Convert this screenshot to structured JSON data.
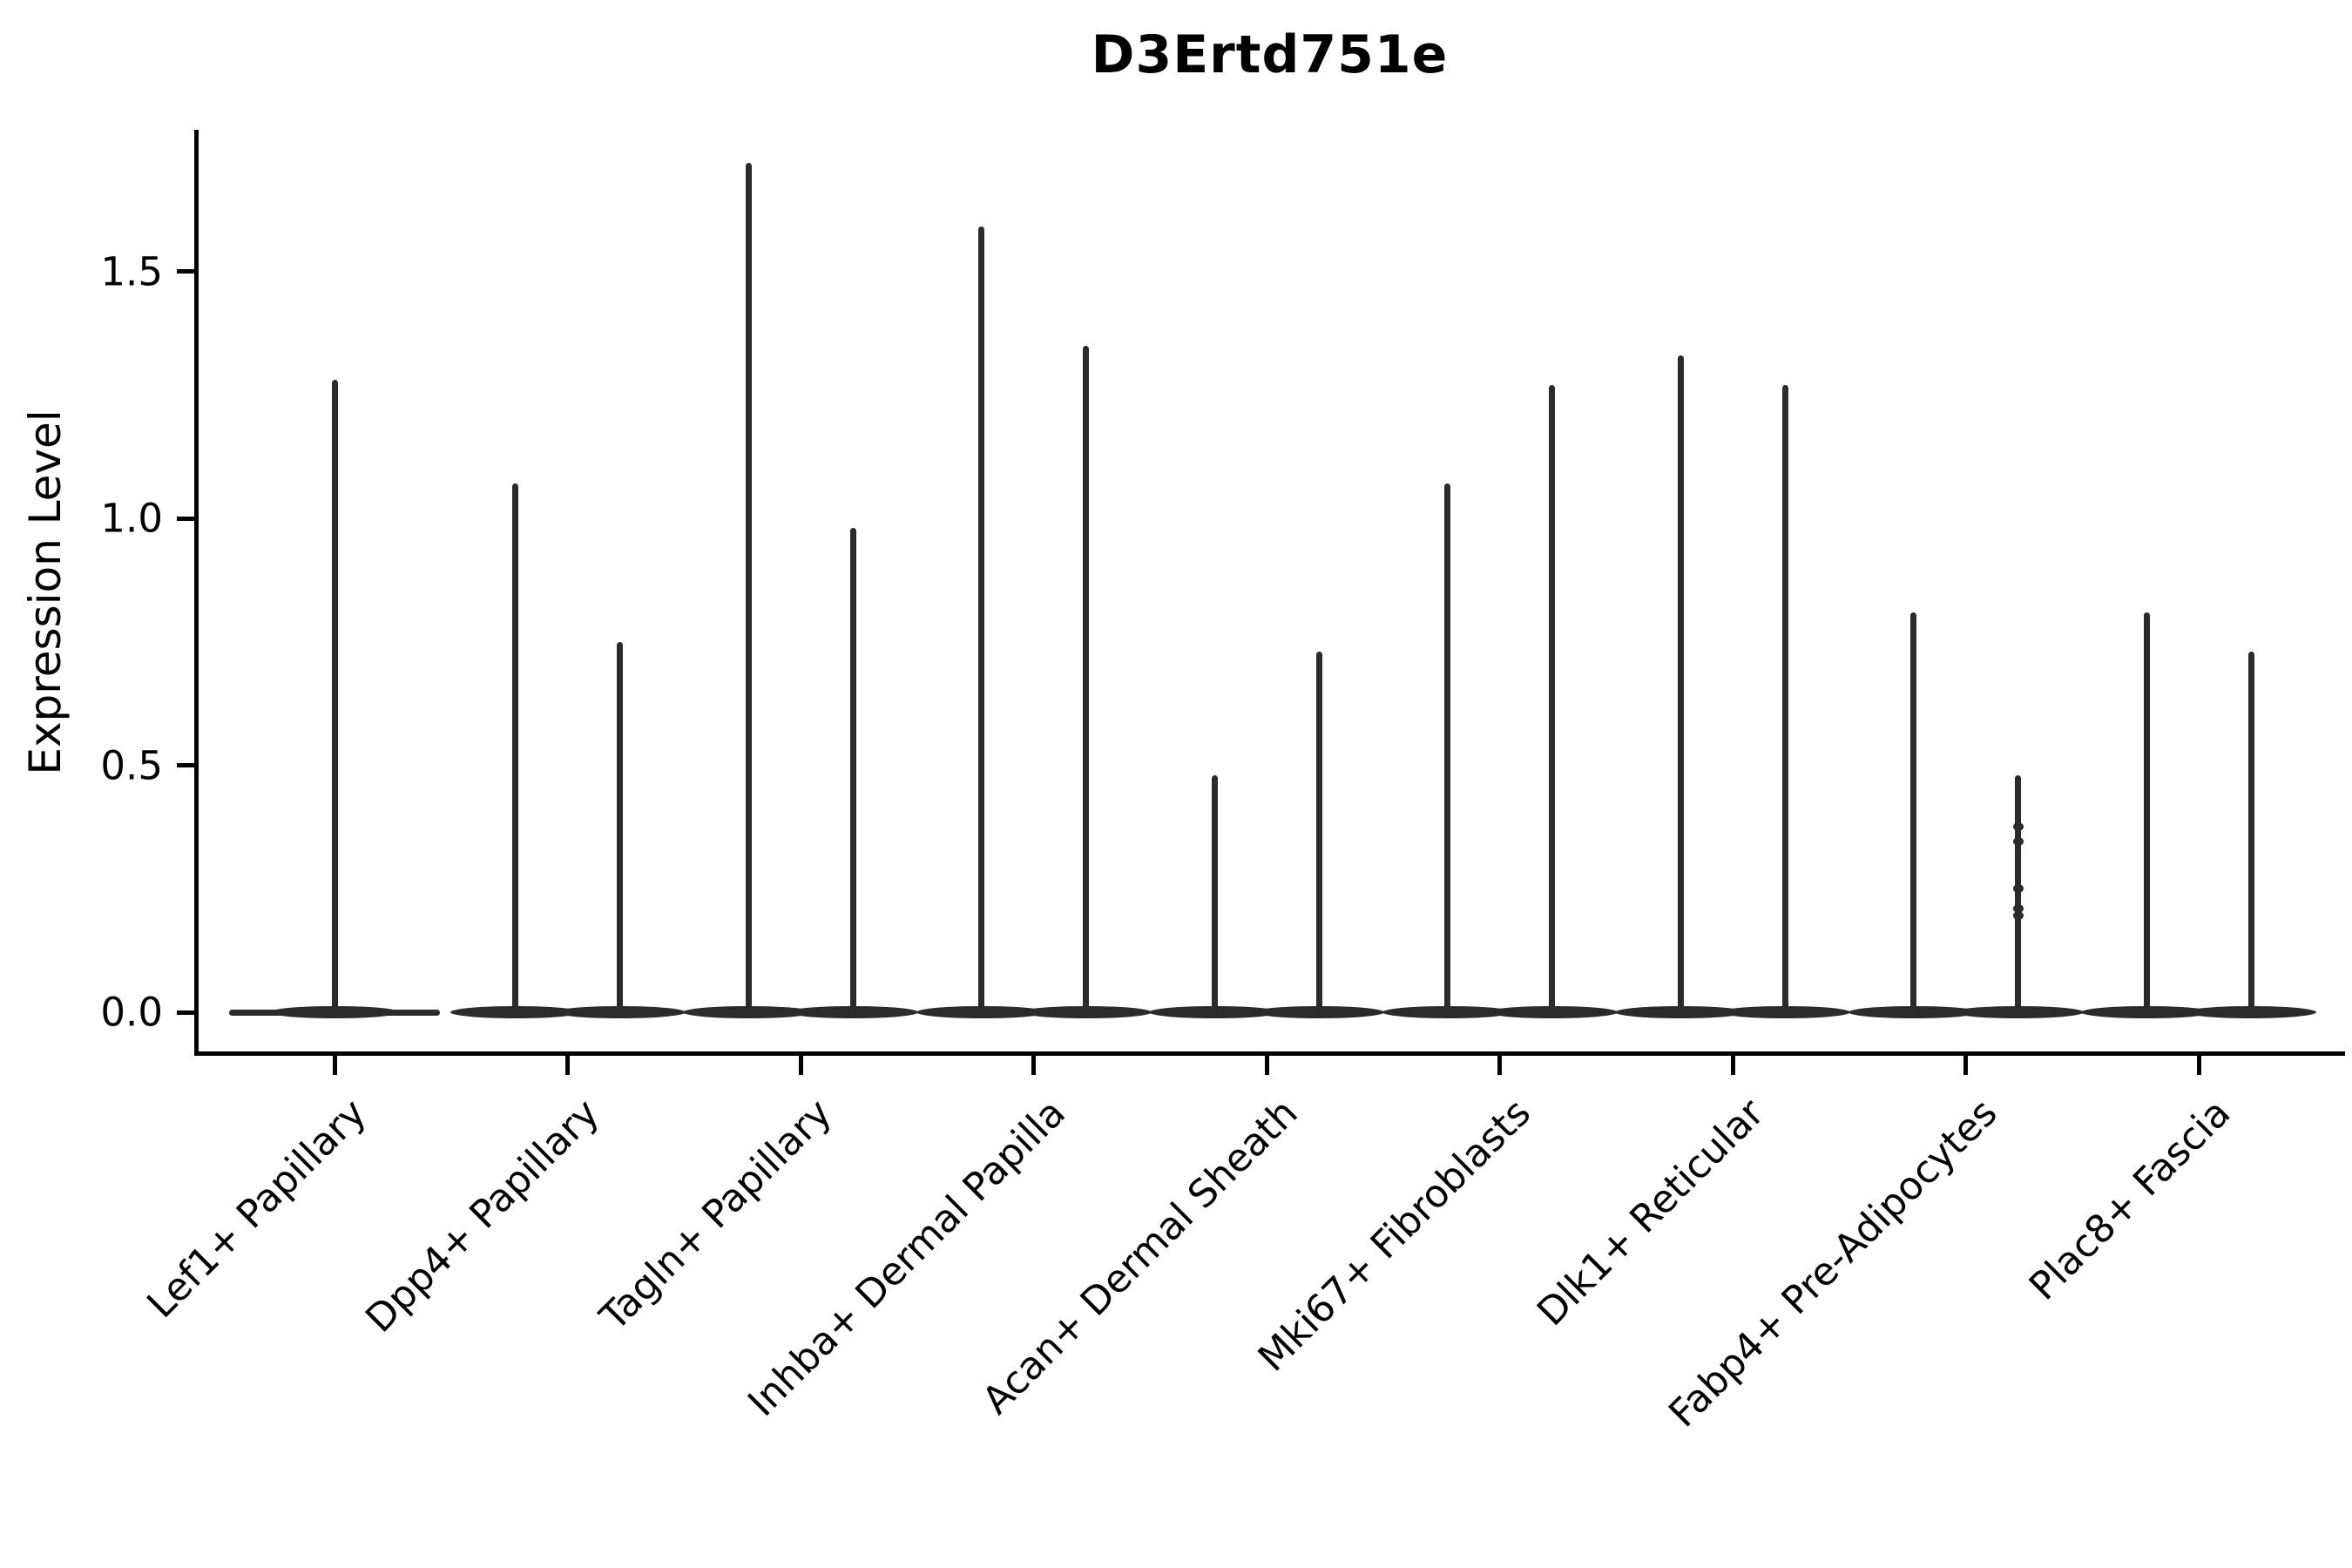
{
  "title": "D3Ertd751e",
  "y_axis": {
    "label": "Expression Level",
    "tick_labels": [
      "0.0",
      "0.5",
      "1.0",
      "1.5"
    ],
    "tick_values": [
      0.0,
      0.5,
      1.0,
      1.5
    ]
  },
  "chart_data": {
    "type": "violin",
    "title": "D3Ertd751e",
    "xlabel": "",
    "ylabel": "Expression Level",
    "ylim": [
      -0.09,
      1.79
    ],
    "grid": false,
    "legend": "none",
    "baseline_value": 0.0,
    "description": "Thin spike-like violins sitting on wide flat bases at expression 0; one violin for the first category, two violins per category for the rest",
    "categories": [
      "Lef1+ Papillary",
      "Dpp4+ Papillary",
      "Tagln+ Papillary",
      "Inhba+ Dermal Papilla",
      "Acan+ Dermal Sheath",
      "Mki67+ Fibroblasts",
      "Dlk1+ Reticular",
      "Fabp4+ Pre-Adipocytes",
      "Plac8+ Fascia"
    ],
    "violins": [
      {
        "category": "Lef1+ Papillary",
        "peaks": [
          1.28
        ]
      },
      {
        "category": "Dpp4+ Papillary",
        "peaks": [
          1.07,
          0.75
        ]
      },
      {
        "category": "Tagln+ Papillary",
        "peaks": [
          1.72,
          0.98
        ]
      },
      {
        "category": "Inhba+ Dermal Papilla",
        "peaks": [
          1.59,
          1.35
        ]
      },
      {
        "category": "Acan+ Dermal Sheath",
        "peaks": [
          0.48,
          0.73
        ]
      },
      {
        "category": "Mki67+ Fibroblasts",
        "peaks": [
          1.07,
          1.27
        ]
      },
      {
        "category": "Dlk1+ Reticular",
        "peaks": [
          1.33,
          1.27
        ]
      },
      {
        "category": "Fabp4+ Pre-Adipocytes",
        "peaks": [
          0.81,
          0.48
        ]
      },
      {
        "category": "Plac8+ Fascia",
        "peaks": [
          0.81,
          0.73
        ]
      }
    ],
    "jitter_points": [
      {
        "category_index": 7,
        "violin_index": 1,
        "values": [
          0.375,
          0.345,
          0.25,
          0.21,
          0.195
        ]
      }
    ],
    "colors": {
      "violin": "#2b2b2b",
      "axis": "#000000",
      "background": "#ffffff"
    }
  }
}
